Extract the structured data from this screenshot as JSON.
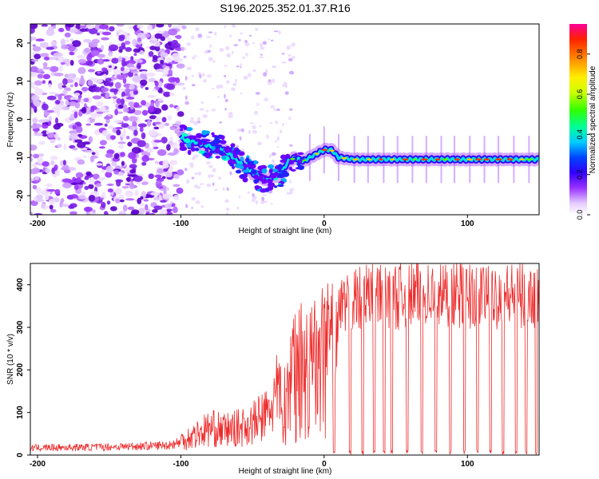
{
  "title": "S196.2025.352.01.37.R16",
  "chart_data": [
    {
      "type": "heatmap",
      "xlabel": "Height of straight line (km)",
      "ylabel": "Frequency (Hz)",
      "xlim": [
        -205,
        150
      ],
      "ylim": [
        -25,
        25
      ],
      "xticks": [
        -200,
        -100,
        0,
        100
      ],
      "yticks": [
        -20,
        -10,
        0,
        10,
        20
      ],
      "colorbar": {
        "label": "Normalized spectral amplitude",
        "range": [
          0.0,
          0.95
        ],
        "ticks": [
          0.0,
          0.2,
          0.4,
          0.6,
          0.8
        ],
        "tick_labels": [
          "0.0",
          "0.2",
          "0.4",
          "0.6",
          "0.8"
        ]
      },
      "ridge": {
        "x": [
          -100,
          -90,
          -80,
          -70,
          -60,
          -50,
          -40,
          -30,
          -25,
          -20,
          -15,
          -10,
          -5,
          0,
          5,
          10,
          20,
          40,
          60,
          80,
          100,
          120,
          140,
          150
        ],
        "freq": [
          -5,
          -6,
          -7,
          -8,
          -11,
          -14,
          -16,
          -14,
          -11,
          -10,
          -11,
          -10,
          -9,
          -8,
          -8,
          -10,
          -10.5,
          -10.5,
          -10.5,
          -10.5,
          -10.5,
          -10.5,
          -10.5,
          -10.5
        ]
      },
      "noise_region_x": [
        -205,
        -100
      ]
    },
    {
      "type": "line",
      "xlabel": "Height of straight line (km)",
      "ylabel": "SNR (10 * v/v)",
      "xlim": [
        -205,
        150
      ],
      "ylim": [
        0,
        450
      ],
      "xticks": [
        -200,
        -100,
        0,
        100
      ],
      "yticks": [
        0,
        100,
        200,
        300,
        400
      ],
      "color": "#ee2b2b",
      "series": [
        {
          "name": "SNR",
          "envelope": {
            "x": [
              -205,
              -150,
              -110,
              -100,
              -90,
              -80,
              -70,
              -60,
              -50,
              -40,
              -30,
              -25,
              -20,
              -15,
              -10,
              -5,
              0,
              5,
              10,
              15,
              20,
              30,
              40,
              60,
              80,
              100,
              120,
              150
            ],
            "level": [
              18,
              20,
              24,
              32,
              45,
              60,
              55,
              60,
              70,
              90,
              150,
              220,
              260,
              270,
              250,
              280,
              300,
              310,
              320,
              330,
              345,
              355,
              355,
              360,
              360,
              360,
              360,
              355
            ]
          },
          "dips_x": [
            -12,
            -2,
            7,
            18,
            27,
            35,
            42,
            47,
            58,
            68,
            78,
            88,
            98,
            107,
            116,
            125,
            134,
            141,
            148
          ],
          "peak_max": 450
        }
      ]
    }
  ]
}
